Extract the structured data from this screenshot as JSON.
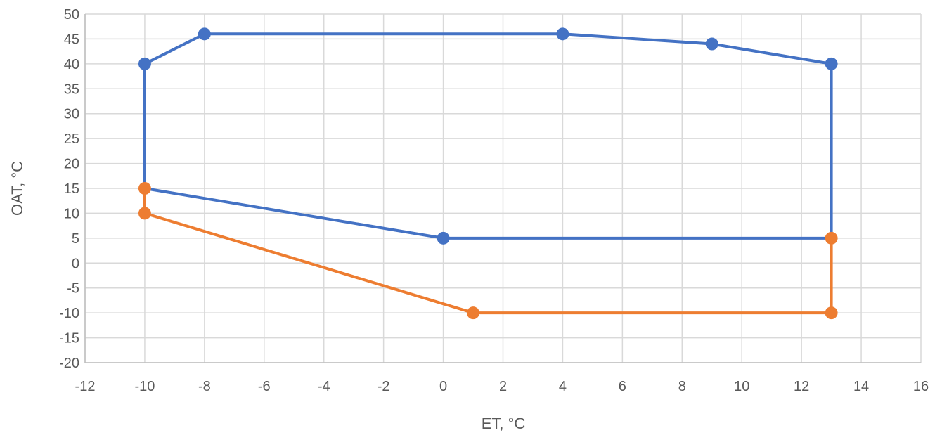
{
  "chart_data": {
    "type": "scatter",
    "title": "",
    "xlabel": "ET, °C",
    "ylabel": "OAT, °C",
    "xlim": [
      -12,
      16
    ],
    "ylim": [
      -20,
      50
    ],
    "x_ticks": [
      -12,
      -10,
      -8,
      -6,
      -4,
      -2,
      0,
      2,
      4,
      6,
      8,
      10,
      12,
      14,
      16
    ],
    "y_ticks": [
      50,
      45,
      40,
      35,
      30,
      25,
      20,
      15,
      10,
      5,
      0,
      -5,
      -10,
      -15,
      -20
    ],
    "grid": true,
    "legend": "none",
    "series": [
      {
        "color": "#4472c4",
        "points": [
          {
            "x": -10,
            "y": 15
          },
          {
            "x": -10,
            "y": 40
          },
          {
            "x": -8,
            "y": 46
          },
          {
            "x": 4,
            "y": 46
          },
          {
            "x": 9,
            "y": 44
          },
          {
            "x": 13,
            "y": 40
          },
          {
            "x": 13,
            "y": 5
          },
          {
            "x": 0,
            "y": 5
          },
          {
            "x": -10,
            "y": 15
          }
        ],
        "markers": [
          {
            "x": -10,
            "y": 40
          },
          {
            "x": -8,
            "y": 46
          },
          {
            "x": 4,
            "y": 46
          },
          {
            "x": 9,
            "y": 44
          },
          {
            "x": 13,
            "y": 40
          },
          {
            "x": 0,
            "y": 5
          }
        ]
      },
      {
        "color": "#ed7d31",
        "points": [
          {
            "x": -10,
            "y": 15
          },
          {
            "x": -10,
            "y": 10
          },
          {
            "x": 1,
            "y": -10
          },
          {
            "x": 13,
            "y": -10
          },
          {
            "x": 13,
            "y": 5
          }
        ],
        "markers": [
          {
            "x": -10,
            "y": 15
          },
          {
            "x": -10,
            "y": 10
          },
          {
            "x": 1,
            "y": -10
          },
          {
            "x": 13,
            "y": -10
          },
          {
            "x": 13,
            "y": 5
          }
        ]
      }
    ]
  }
}
